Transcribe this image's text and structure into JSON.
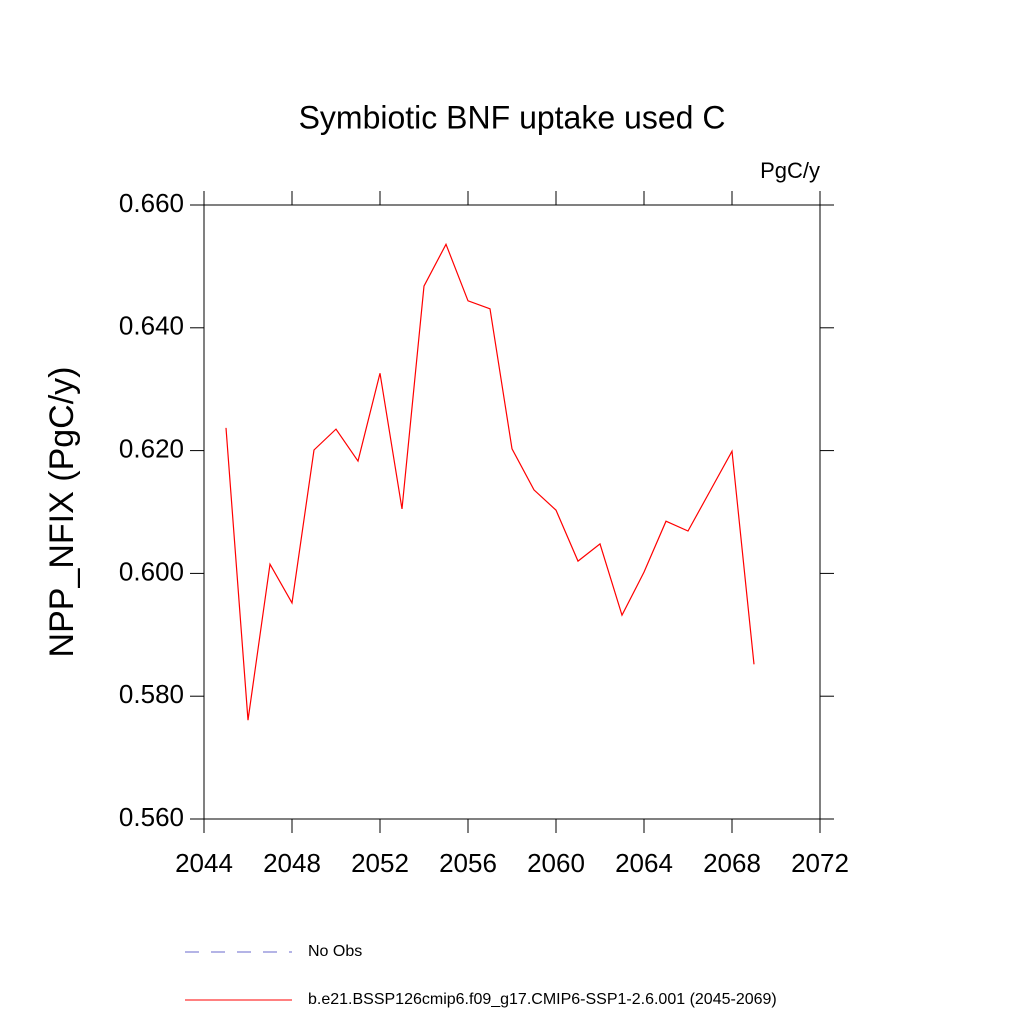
{
  "chart_data": {
    "type": "line",
    "title": "Symbiotic BNF uptake used C",
    "units": "PgC/y",
    "ylabel": "NPP_NFIX  (PgC/y)",
    "x": [
      2045,
      2046,
      2047,
      2048,
      2049,
      2050,
      2051,
      2052,
      2053,
      2054,
      2055,
      2056,
      2057,
      2058,
      2059,
      2060,
      2061,
      2062,
      2063,
      2064,
      2065,
      2066,
      2067,
      2068,
      2069
    ],
    "series": [
      {
        "name": "No Obs",
        "color": "#6a6acd",
        "dashed": true,
        "values": [
          null,
          null,
          null,
          null,
          null,
          null,
          null,
          null,
          null,
          null,
          null,
          null,
          null,
          null,
          null,
          null,
          null,
          null,
          null,
          null,
          null,
          null,
          null,
          null,
          null
        ]
      },
      {
        "name": "b.e21.BSSP126cmip6.f09_g17.CMIP6-SSP1-2.6.001 (2045-2069)",
        "color": "#ff0000",
        "dashed": false,
        "values": [
          0.6237,
          0.5761,
          0.6015,
          0.5952,
          0.6201,
          0.6235,
          0.6183,
          0.6326,
          0.6105,
          0.6468,
          0.6536,
          0.6444,
          0.6431,
          0.6203,
          0.6136,
          0.6103,
          0.602,
          0.6048,
          0.5932,
          0.6002,
          0.6085,
          0.6069,
          0.6134,
          0.6199,
          0.5852
        ]
      }
    ],
    "xlim": [
      2044,
      2072
    ],
    "xticks": [
      2044,
      2048,
      2052,
      2056,
      2060,
      2064,
      2068,
      2072
    ],
    "ylim": [
      0.56,
      0.66
    ],
    "yticks": [
      {
        "value": 0.56,
        "label": "0.560"
      },
      {
        "value": 0.58,
        "label": "0.580"
      },
      {
        "value": 0.6,
        "label": "0.600"
      },
      {
        "value": 0.62,
        "label": "0.620"
      },
      {
        "value": 0.64,
        "label": "0.640"
      },
      {
        "value": 0.66,
        "label": "0.660"
      }
    ]
  }
}
